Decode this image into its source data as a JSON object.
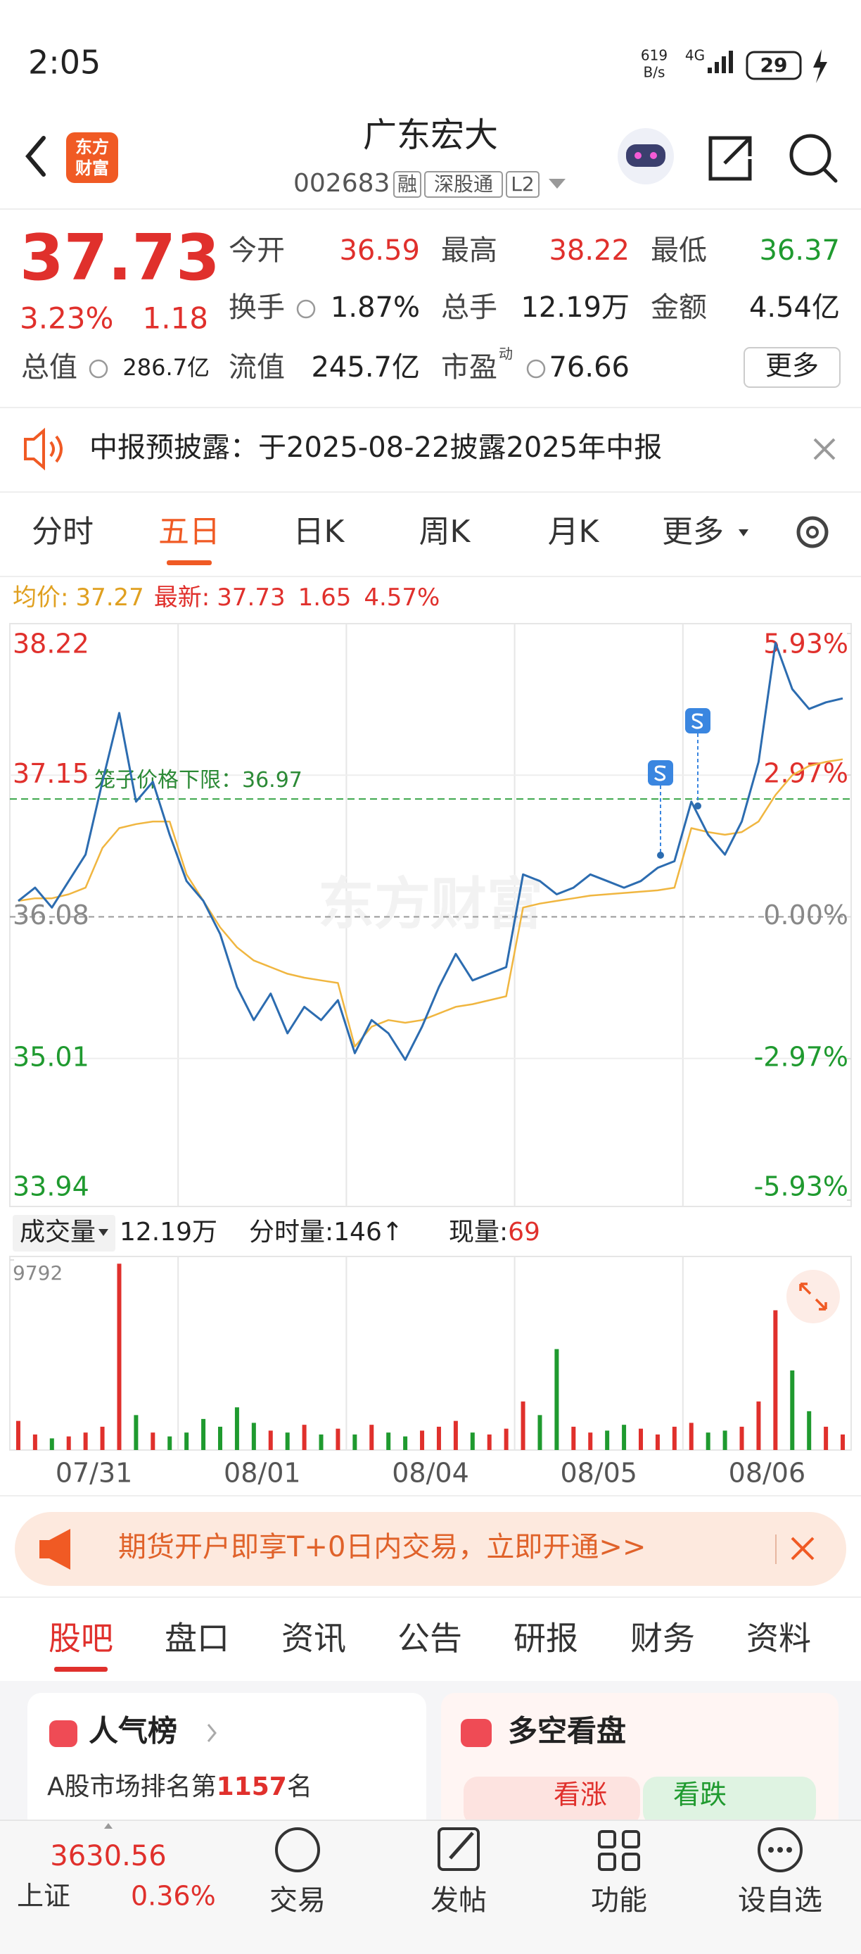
{
  "status_bar": {
    "time": "2:05",
    "net_speed": "619",
    "net_unit": "B/s",
    "network": "4G",
    "battery": "29"
  },
  "header": {
    "logo_lines": [
      "东方",
      "财富"
    ],
    "title": "广东宏大",
    "code": "002683",
    "tags": [
      "融",
      "深股通",
      "L2"
    ]
  },
  "quote": {
    "price": "37.73",
    "change_pct": "3.23%",
    "change": "1.18",
    "stats": [
      {
        "label": "今开",
        "value": "36.59",
        "color": "#e0302c"
      },
      {
        "label": "最高",
        "value": "38.22",
        "color": "#e0302c"
      },
      {
        "label": "最低",
        "value": "36.37",
        "color": "#1f9a2f"
      },
      {
        "label": "换手",
        "value": "1.87%",
        "color": "#222222"
      },
      {
        "label": "总手",
        "value": "12.19万",
        "color": "#222222"
      },
      {
        "label": "金额",
        "value": "4.54亿",
        "color": "#222222"
      },
      {
        "label": "总值",
        "value": "286.7亿",
        "color": "#222222"
      },
      {
        "label": "流值",
        "value": "245.7亿",
        "color": "#222222"
      },
      {
        "label": "市盈",
        "sup": "动",
        "value": "76.66",
        "color": "#222222"
      }
    ],
    "more": "更多"
  },
  "notice": {
    "text": "中报预披露：于2025-08-22披露2025年中报"
  },
  "period_tabs": {
    "items": [
      "分时",
      "五日",
      "日K",
      "周K",
      "月K",
      "更多"
    ],
    "active": 1
  },
  "chart_info": {
    "avg_label": "均价:",
    "avg_value": "37.27",
    "latest_label": "最新:",
    "latest": "37.73",
    "change": "1.65",
    "change_pct": "4.57%"
  },
  "chart_data": [
    {
      "type": "line",
      "watermark": "东方财富",
      "xlim": [
        0,
        50
      ],
      "ylim": [
        33.94,
        38.22
      ],
      "yticks": [
        33.94,
        35.01,
        36.08,
        37.15,
        38.22
      ],
      "y2lim": [
        -5.93,
        5.93
      ],
      "y2ticks": [
        {
          "value": -5.93,
          "label": "-5.93%"
        },
        {
          "value": -2.97,
          "label": "-2.97%"
        },
        {
          "value": 0,
          "label": "0.00%"
        },
        {
          "value": 2.97,
          "label": "2.97%"
        },
        {
          "value": 5.93,
          "label": "5.93%"
        }
      ],
      "limit_line": {
        "text": "笼子价格下限：",
        "value": 36.97
      },
      "series": [
        {
          "color": "#2c6cb0",
          "values": [
            36.2,
            36.3,
            36.15,
            36.35,
            36.55,
            37.1,
            37.62,
            36.95,
            37.1,
            36.7,
            36.35,
            36.2,
            35.95,
            35.55,
            35.3,
            35.5,
            35.2,
            35.4,
            35.3,
            35.45,
            35.05,
            35.3,
            35.2,
            35.0,
            35.25,
            35.55,
            35.8,
            35.6,
            35.65,
            35.7,
            36.4,
            36.35,
            36.25,
            36.3,
            36.4,
            36.35,
            36.3,
            36.35,
            36.45,
            36.5,
            36.95,
            36.7,
            36.55,
            36.8,
            37.25,
            38.15,
            37.8,
            37.65,
            37.7,
            37.73
          ]
        },
        {
          "color": "#f0b640",
          "values": [
            36.2,
            36.22,
            36.22,
            36.25,
            36.3,
            36.6,
            36.75,
            36.78,
            36.8,
            36.8,
            36.4,
            36.2,
            36.0,
            35.85,
            35.75,
            35.7,
            35.65,
            35.62,
            35.6,
            35.58,
            35.1,
            35.25,
            35.3,
            35.28,
            35.3,
            35.35,
            35.4,
            35.42,
            35.45,
            35.48,
            36.15,
            36.18,
            36.2,
            36.22,
            36.24,
            36.25,
            36.26,
            36.27,
            36.28,
            36.3,
            36.75,
            36.72,
            36.7,
            36.72,
            36.8,
            37.0,
            37.15,
            37.22,
            37.25,
            37.27
          ]
        }
      ]
    },
    {
      "type": "bar",
      "xlim": [
        0,
        50
      ],
      "ylim": [
        0,
        9792
      ],
      "yticks": [
        9792
      ],
      "xticks": [
        {
          "value": 5,
          "label": "07/31"
        },
        {
          "value": 15,
          "label": "08/01"
        },
        {
          "value": 25,
          "label": "08/04"
        },
        {
          "value": 35,
          "label": "08/05"
        },
        {
          "value": 45,
          "label": "08/06"
        }
      ],
      "header": {
        "label": "成交量",
        "total": "12.19万",
        "tick_label": "分时量:",
        "tick_value": "146↑",
        "now_label": "现量:",
        "now_value": "69"
      },
      "values": [
        1500,
        800,
        600,
        700,
        900,
        1200,
        9600,
        1800,
        900,
        700,
        900,
        1600,
        1200,
        2200,
        1400,
        1000,
        900,
        1300,
        800,
        1100,
        800,
        1300,
        900,
        700,
        1000,
        1200,
        1500,
        900,
        800,
        1100,
        2500,
        1800,
        5200,
        1200,
        900,
        1000,
        1300,
        1100,
        800,
        1200,
        1400,
        900,
        1000,
        1200,
        2500,
        7200,
        4100,
        2000,
        1200,
        800
      ],
      "colors": [
        "#e0302c",
        "#e0302c",
        "#1f9a2f",
        "#e0302c",
        "#e0302c",
        "#e0302c",
        "#e0302c",
        "#1f9a2f",
        "#e0302c",
        "#1f9a2f",
        "#1f9a2f",
        "#1f9a2f",
        "#1f9a2f",
        "#1f9a2f",
        "#1f9a2f",
        "#e0302c",
        "#1f9a2f",
        "#e0302c",
        "#1f9a2f",
        "#e0302c",
        "#1f9a2f",
        "#e0302c",
        "#1f9a2f",
        "#1f9a2f",
        "#e0302c",
        "#e0302c",
        "#e0302c",
        "#1f9a2f",
        "#e0302c",
        "#e0302c",
        "#e0302c",
        "#1f9a2f",
        "#1f9a2f",
        "#e0302c",
        "#e0302c",
        "#1f9a2f",
        "#1f9a2f",
        "#e0302c",
        "#e0302c",
        "#e0302c",
        "#e0302c",
        "#1f9a2f",
        "#1f9a2f",
        "#e0302c",
        "#e0302c",
        "#e0302c",
        "#1f9a2f",
        "#1f9a2f",
        "#e0302c",
        "#e0302c"
      ]
    }
  ],
  "banner": {
    "text": "期货开户即享T+0日内交易，立即开通>>"
  },
  "content_tabs": {
    "items": [
      "股吧",
      "盘口",
      "资讯",
      "公告",
      "研报",
      "财务",
      "资料"
    ],
    "active": 0
  },
  "cards": {
    "popularity": {
      "title": "人气榜",
      "text_before": "A股市场排名第",
      "rank": "1157",
      "text_after": "名"
    },
    "sentiment": {
      "title": "多空看盘",
      "bull": "看涨",
      "bear": "看跌"
    }
  },
  "bottom_nav": {
    "index_value": "3630.56",
    "index_name": "上证",
    "index_change": "0.36%",
    "items": [
      "交易",
      "发帖",
      "功能",
      "设自选"
    ]
  }
}
